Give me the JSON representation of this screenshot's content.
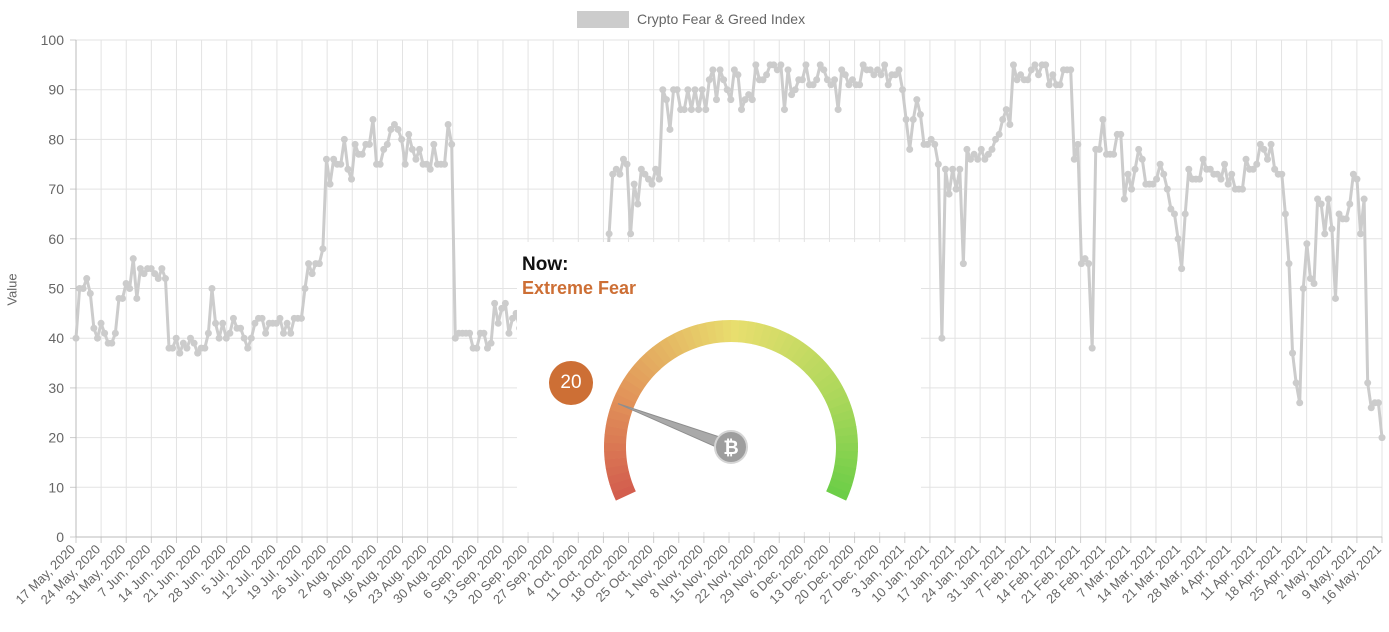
{
  "chart_data": {
    "type": "line",
    "title": "",
    "legend": {
      "label": "Crypto Fear & Greed Index",
      "position": "top-center"
    },
    "ylabel": "Value",
    "xlabel": "",
    "ylim": [
      0,
      100
    ],
    "yticks": [
      0,
      10,
      20,
      30,
      40,
      50,
      60,
      70,
      80,
      90,
      100
    ],
    "grid": true,
    "x_start": "2020-05-17",
    "x_end": "2021-05-23",
    "x_tick_labels": [
      "17 May, 2020",
      "24 May, 2020",
      "31 May, 2020",
      "7 Jun, 2020",
      "14 Jun, 2020",
      "21 Jun, 2020",
      "28 Jun, 2020",
      "5 Jul, 2020",
      "12 Jul, 2020",
      "19 Jul, 2020",
      "26 Jul, 2020",
      "2 Aug, 2020",
      "9 Aug, 2020",
      "16 Aug, 2020",
      "23 Aug, 2020",
      "30 Aug, 2020",
      "6 Sep, 2020",
      "13 Sep, 2020",
      "20 Sep, 2020",
      "27 Sep, 2020",
      "4 Oct, 2020",
      "11 Oct, 2020",
      "18 Oct, 2020",
      "25 Oct, 2020",
      "1 Nov, 2020",
      "8 Nov, 2020",
      "15 Nov, 2020",
      "22 Nov, 2020",
      "29 Nov, 2020",
      "6 Dec, 2020",
      "13 Dec, 2020",
      "20 Dec, 2020",
      "27 Dec, 2020",
      "3 Jan, 2021",
      "10 Jan, 2021",
      "17 Jan, 2021",
      "24 Jan, 2021",
      "31 Jan, 2021",
      "7 Feb, 2021",
      "14 Feb, 2021",
      "21 Feb, 2021",
      "28 Feb, 2021",
      "7 Mar, 2021",
      "14 Mar, 2021",
      "21 Mar, 2021",
      "28 Mar, 2021",
      "4 Apr, 2021",
      "11 Apr, 2021",
      "18 Apr, 2021",
      "25 Apr, 2021",
      "2 May, 2021",
      "9 May, 2021",
      "16 May, 2021"
    ],
    "series": [
      {
        "name": "Crypto Fear & Greed Index",
        "color": "#cccccc",
        "values": [
          40,
          50,
          50,
          52,
          49,
          42,
          40,
          43,
          41,
          39,
          39,
          41,
          48,
          48,
          51,
          50,
          56,
          48,
          54,
          53,
          54,
          54,
          53,
          52,
          54,
          52,
          38,
          38,
          40,
          37,
          39,
          38,
          40,
          39,
          37,
          38,
          38,
          41,
          50,
          43,
          40,
          43,
          40,
          41,
          44,
          42,
          42,
          40,
          38,
          40,
          43,
          44,
          44,
          41,
          43,
          43,
          43,
          44,
          41,
          43,
          41,
          44,
          44,
          44,
          50,
          55,
          53,
          55,
          55,
          58,
          76,
          71,
          76,
          75,
          75,
          80,
          74,
          72,
          79,
          77,
          77,
          79,
          79,
          84,
          75,
          75,
          78,
          79,
          82,
          83,
          82,
          80,
          75,
          81,
          78,
          76,
          78,
          75,
          75,
          74,
          79,
          75,
          75,
          75,
          83,
          79,
          40,
          41,
          41,
          41,
          41,
          38,
          38,
          41,
          41,
          38,
          39,
          47,
          43,
          46,
          47,
          41,
          44,
          45,
          42,
          47,
          48,
          46,
          47,
          51,
          56,
          44,
          44,
          45,
          44,
          44,
          46,
          45,
          44,
          50,
          57,
          50,
          42,
          47,
          48,
          49,
          56,
          50,
          46,
          61,
          73,
          74,
          73,
          76,
          75,
          61,
          71,
          67,
          74,
          73,
          72,
          71,
          74,
          72,
          90,
          88,
          82,
          90,
          90,
          86,
          86,
          90,
          86,
          90,
          86,
          90,
          86,
          92,
          94,
          88,
          94,
          92,
          90,
          88,
          94,
          93,
          86,
          88,
          89,
          88,
          95,
          92,
          92,
          93,
          95,
          95,
          94,
          95,
          86,
          94,
          89,
          90,
          92,
          92,
          95,
          91,
          91,
          92,
          95,
          94,
          92,
          91,
          92,
          86,
          94,
          93,
          91,
          92,
          91,
          91,
          95,
          94,
          94,
          93,
          94,
          93,
          95,
          91,
          93,
          93,
          94,
          90,
          84,
          78,
          84,
          88,
          85,
          79,
          79,
          80,
          79,
          75,
          40,
          74,
          69,
          74,
          70,
          74,
          55,
          78,
          76,
          77,
          76,
          78,
          76,
          77,
          78,
          80,
          81,
          84,
          86,
          83,
          95,
          92,
          93,
          92,
          92,
          94,
          95,
          93,
          95,
          95,
          91,
          93,
          91,
          91,
          94,
          94,
          94,
          76,
          79,
          55,
          56,
          55,
          38,
          78,
          78,
          84,
          77,
          77,
          77,
          81,
          81,
          68,
          73,
          70,
          74,
          78,
          76,
          71,
          71,
          71,
          72,
          75,
          73,
          70,
          66,
          65,
          60,
          54,
          65,
          74,
          72,
          72,
          72,
          76,
          74,
          74,
          73,
          73,
          72,
          75,
          71,
          73,
          70,
          70,
          70,
          76,
          74,
          74,
          75,
          79,
          78,
          76,
          79,
          74,
          73,
          73,
          65,
          55,
          37,
          31,
          27,
          50,
          59,
          52,
          51,
          68,
          67,
          61,
          68,
          62,
          48,
          65,
          64,
          64,
          67,
          73,
          72,
          61,
          68,
          31,
          26,
          27,
          27,
          20
        ]
      }
    ]
  },
  "gauge": {
    "now_label": "Now:",
    "classification": "Extreme Fear",
    "value": "20",
    "value_number": 20,
    "accent_color": "#cd6f35",
    "center_icon": "bitcoin-icon"
  }
}
